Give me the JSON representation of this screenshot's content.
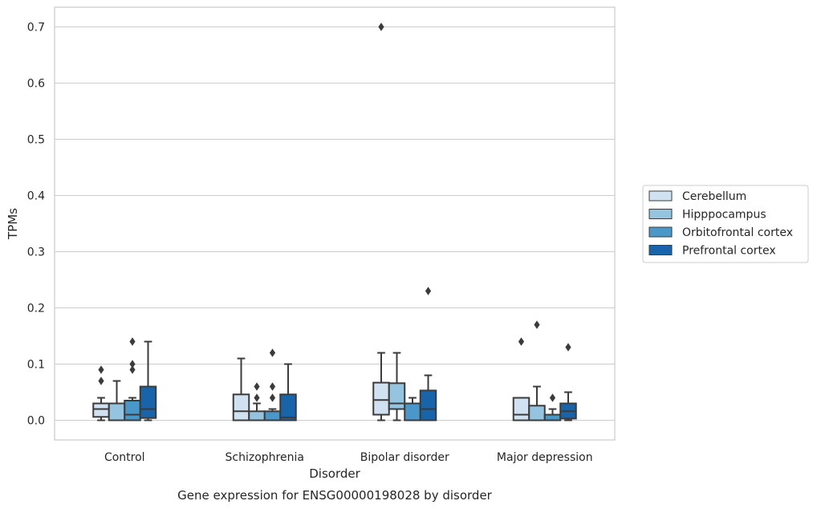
{
  "chart_data": {
    "type": "box",
    "caption": "Gene expression for ENSG00000198028 by disorder",
    "xlabel": "Disorder",
    "ylabel": "TPMs",
    "ylim": [
      -0.035,
      0.735
    ],
    "yticks": [
      0.0,
      0.1,
      0.2,
      0.3,
      0.4,
      0.5,
      0.6,
      0.7
    ],
    "ytick_labels": [
      "0.0",
      "0.1",
      "0.2",
      "0.3",
      "0.4",
      "0.5",
      "0.6",
      "0.7"
    ],
    "grid": "horizontal",
    "legend_position": "right",
    "categories": [
      "Control",
      "Schizophrenia",
      "Bipolar disorder",
      "Major depression"
    ],
    "series": [
      {
        "name": "Cerebellum",
        "color": "#d0e1f2",
        "boxes": [
          {
            "whislo": 0.0,
            "q1": 0.006,
            "med": 0.02,
            "q3": 0.03,
            "whishi": 0.04,
            "fliers": [
              0.07,
              0.09
            ]
          },
          {
            "whislo": 0.0,
            "q1": 0.0,
            "med": 0.016,
            "q3": 0.046,
            "whishi": 0.11,
            "fliers": []
          },
          {
            "whislo": 0.0,
            "q1": 0.01,
            "med": 0.036,
            "q3": 0.067,
            "whishi": 0.12,
            "fliers": [
              0.7
            ]
          },
          {
            "whislo": 0.0,
            "q1": 0.0,
            "med": 0.01,
            "q3": 0.04,
            "whishi": 0.04,
            "fliers": [
              0.14
            ]
          }
        ]
      },
      {
        "name": "Hipppocampus",
        "color": "#94c4df",
        "boxes": [
          {
            "whislo": 0.0,
            "q1": 0.0,
            "med": 0.0,
            "q3": 0.03,
            "whishi": 0.07,
            "fliers": []
          },
          {
            "whislo": 0.0,
            "q1": 0.0,
            "med": 0.0,
            "q3": 0.016,
            "whishi": 0.03,
            "fliers": [
              0.04,
              0.06
            ]
          },
          {
            "whislo": 0.0,
            "q1": 0.02,
            "med": 0.03,
            "q3": 0.066,
            "whishi": 0.12,
            "fliers": []
          },
          {
            "whislo": 0.0,
            "q1": 0.0,
            "med": 0.0,
            "q3": 0.026,
            "whishi": 0.06,
            "fliers": [
              0.17
            ]
          }
        ]
      },
      {
        "name": "Orbitofrontal cortex",
        "color": "#4a98c9",
        "boxes": [
          {
            "whislo": 0.0,
            "q1": 0.0,
            "med": 0.01,
            "q3": 0.035,
            "whishi": 0.04,
            "fliers": [
              0.09,
              0.1,
              0.14
            ]
          },
          {
            "whislo": 0.0,
            "q1": 0.0,
            "med": 0.0,
            "q3": 0.016,
            "whishi": 0.02,
            "fliers": [
              0.04,
              0.06,
              0.12
            ]
          },
          {
            "whislo": 0.0,
            "q1": 0.0,
            "med": 0.0,
            "q3": 0.03,
            "whishi": 0.04,
            "fliers": []
          },
          {
            "whislo": 0.0,
            "q1": 0.0,
            "med": 0.0,
            "q3": 0.01,
            "whishi": 0.02,
            "fliers": [
              0.04
            ]
          }
        ]
      },
      {
        "name": "Prefrontal cortex",
        "color": "#1764ab",
        "boxes": [
          {
            "whislo": 0.0,
            "q1": 0.004,
            "med": 0.02,
            "q3": 0.06,
            "whishi": 0.14,
            "fliers": []
          },
          {
            "whislo": 0.0,
            "q1": 0.0,
            "med": 0.005,
            "q3": 0.046,
            "whishi": 0.1,
            "fliers": []
          },
          {
            "whislo": 0.0,
            "q1": 0.0,
            "med": 0.02,
            "q3": 0.053,
            "whishi": 0.08,
            "fliers": [
              0.23
            ]
          },
          {
            "whislo": 0.0,
            "q1": 0.003,
            "med": 0.016,
            "q3": 0.03,
            "whishi": 0.05,
            "fliers": [
              0.13
            ]
          }
        ]
      }
    ]
  }
}
